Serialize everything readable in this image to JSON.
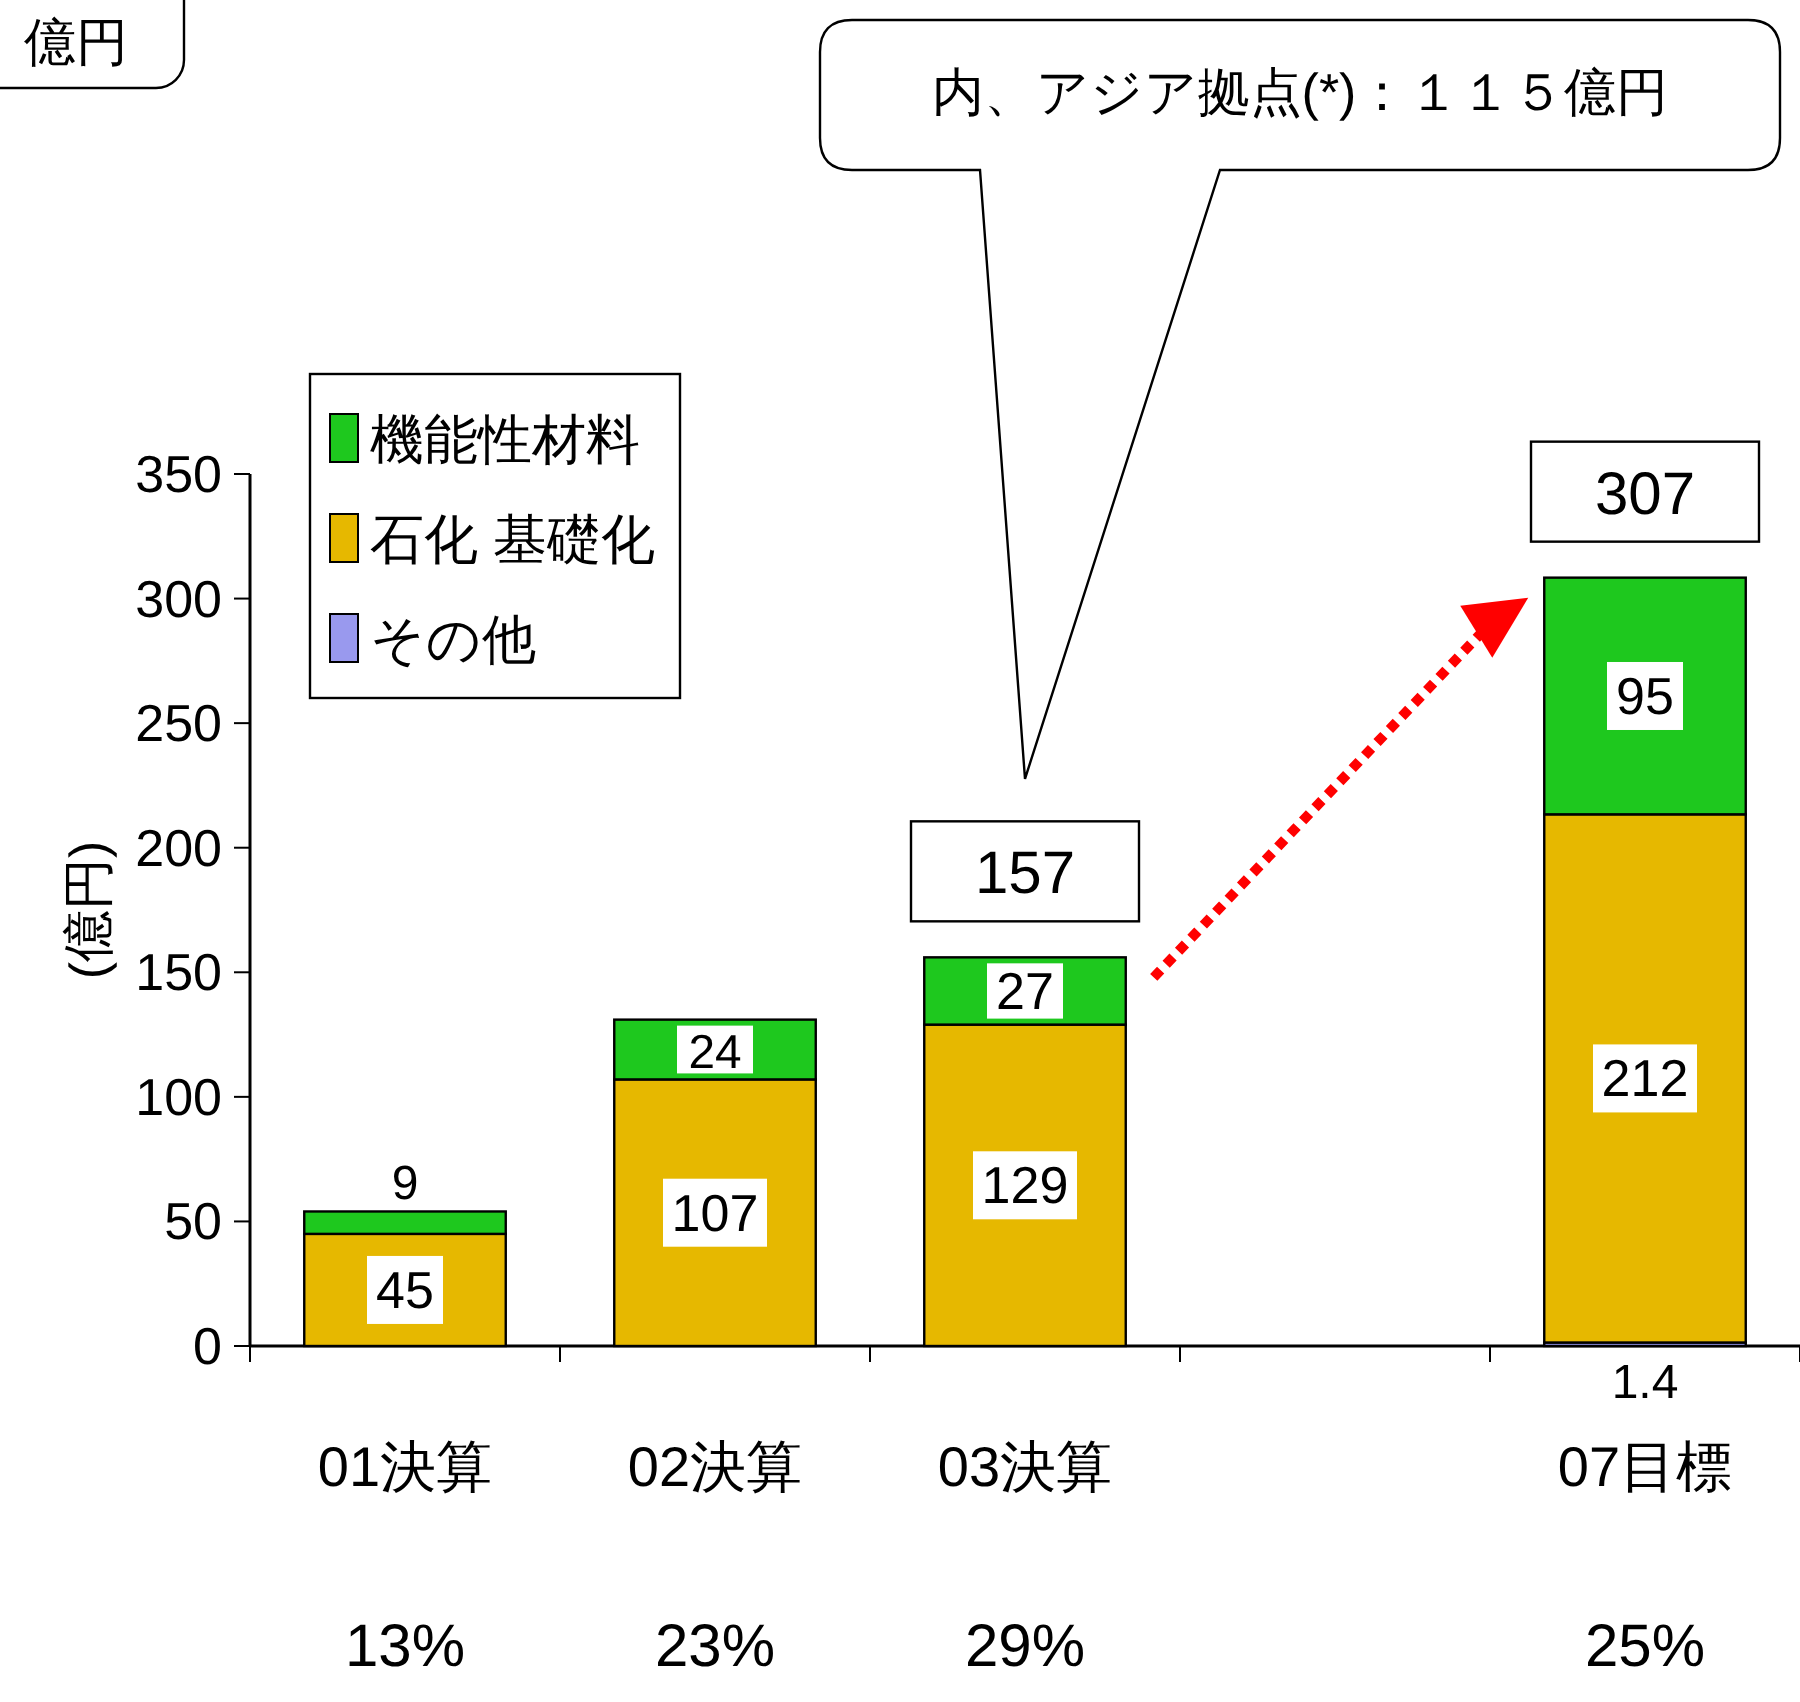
{
  "chart_data": {
    "type": "bar",
    "stacked": true,
    "ylabel": "(億円)",
    "categories": [
      "01決算",
      "02決算",
      "03決算",
      null,
      "07目標"
    ],
    "series": [
      {
        "name": "その他",
        "color": "#9999ee",
        "values": [
          0,
          0,
          0,
          null,
          1.4
        ],
        "value_labels": [
          null,
          null,
          null,
          null,
          "1.4"
        ]
      },
      {
        "name": "石化 基礎化",
        "color": "#e6b800",
        "values": [
          45,
          107,
          129,
          null,
          212
        ],
        "value_labels": [
          "45",
          "107",
          "129",
          null,
          "212"
        ]
      },
      {
        "name": "機能性材料",
        "color": "#1ec81e",
        "values": [
          9,
          24,
          27,
          null,
          95
        ],
        "value_labels": [
          "9",
          "24",
          "27",
          null,
          "95"
        ]
      }
    ],
    "totals": [
      null,
      null,
      "157",
      null,
      "307"
    ],
    "ylim": [
      0,
      350
    ],
    "yticks": [
      0,
      50,
      100,
      150,
      200,
      250,
      300,
      350
    ],
    "legend": "top left",
    "grid": false,
    "annotations": [
      "億円",
      "内、アジア拠点(*)：１１５億円",
      "13%",
      "23%",
      "29%",
      "25%"
    ]
  }
}
